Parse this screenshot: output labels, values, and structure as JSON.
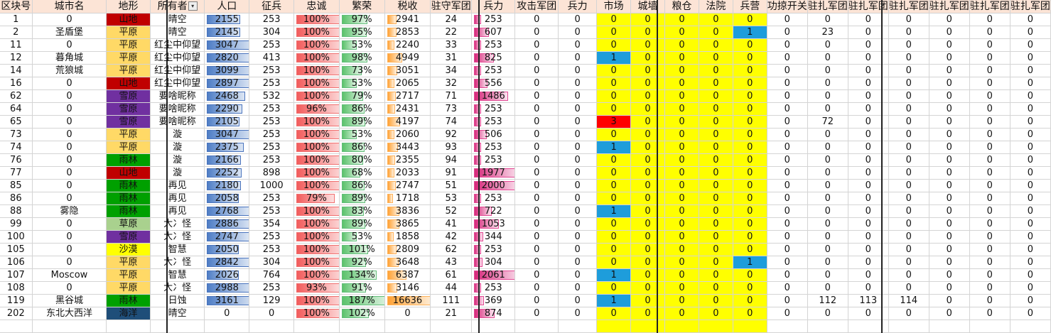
{
  "headers": [
    "区块号",
    "城市名",
    "地形",
    "所有者",
    "人口",
    "征兵",
    "忠诚",
    "繁荣",
    "税收",
    "驻守军团",
    "兵力",
    "攻击军团",
    "兵力",
    "市场",
    "城墙",
    "粮仓",
    "法院",
    "兵营",
    "功掠开关",
    "驻扎军团",
    "驻扎军团",
    "驻扎军团",
    "驻扎军团",
    "驻扎军团",
    "驻扎军团"
  ],
  "terrain_colors": {
    "山地": "#c00000",
    "平原": "#ffd966",
    "雪原": "#7030a0",
    "雨林": "#00a000",
    "草原": "#a9d18e",
    "沙漠": "#ffff00",
    "海洋": "#1f4e79"
  },
  "rows": [
    {
      "id": "1",
      "city": "0",
      "terrain": "山地",
      "owner": "晴空",
      "pop": "2155",
      "pop_v": 2155,
      "draft": "253",
      "loyalty": "100%",
      "loy_v": 100,
      "prosper": "97%",
      "pro_v": 97,
      "tax": "2941",
      "tax_v": 2941,
      "garrison": "24",
      "force": "253",
      "force_v": 253,
      "atk": "0",
      "atkforce": "0",
      "market": "0",
      "wall": "0",
      "granary": "0",
      "court": "0",
      "barracks": "0",
      "raid": "0",
      "s1": "0",
      "s2": "0",
      "s3": "0",
      "s4": "0",
      "s5": "0",
      "s6": "0"
    },
    {
      "id": "2",
      "city": "圣盾堡",
      "terrain": "平原",
      "owner": "晴空",
      "pop": "2145",
      "pop_v": 2145,
      "draft": "304",
      "loyalty": "100%",
      "loy_v": 100,
      "prosper": "95%",
      "pro_v": 95,
      "tax": "2853",
      "tax_v": 2853,
      "garrison": "22",
      "force": "607",
      "force_v": 607,
      "atk": "0",
      "atkforce": "0",
      "market": "0",
      "wall": "0",
      "granary": "0",
      "court": "0",
      "barracks": "1",
      "raid": "0",
      "s1": "23",
      "s2": "0",
      "s3": "0",
      "s4": "0",
      "s5": "0",
      "s6": "0"
    },
    {
      "id": "11",
      "city": "0",
      "terrain": "平原",
      "owner": "红尘中仰望",
      "pop": "3047",
      "pop_v": 3047,
      "draft": "253",
      "loyalty": "100%",
      "loy_v": 100,
      "prosper": "53%",
      "pro_v": 53,
      "tax": "2240",
      "tax_v": 2240,
      "garrison": "33",
      "force": "253",
      "force_v": 253,
      "atk": "0",
      "atkforce": "0",
      "market": "0",
      "wall": "0",
      "granary": "0",
      "court": "0",
      "barracks": "0",
      "raid": "0",
      "s1": "0",
      "s2": "0",
      "s3": "0",
      "s4": "0",
      "s5": "0",
      "s6": "0"
    },
    {
      "id": "12",
      "city": "暮角城",
      "terrain": "平原",
      "owner": "红尘中仰望",
      "pop": "2820",
      "pop_v": 2820,
      "draft": "413",
      "loyalty": "100%",
      "loy_v": 100,
      "prosper": "98%",
      "pro_v": 98,
      "tax": "4949",
      "tax_v": 4949,
      "garrison": "31",
      "force": "825",
      "force_v": 825,
      "atk": "0",
      "atkforce": "0",
      "market": "1",
      "wall": "0",
      "granary": "0",
      "court": "0",
      "barracks": "0",
      "raid": "0",
      "s1": "0",
      "s2": "0",
      "s3": "0",
      "s4": "0",
      "s5": "0",
      "s6": "0"
    },
    {
      "id": "14",
      "city": "荒狼城",
      "terrain": "平原",
      "owner": "红尘中仰望",
      "pop": "3099",
      "pop_v": 3099,
      "draft": "253",
      "loyalty": "100%",
      "loy_v": 100,
      "prosper": "73%",
      "pro_v": 73,
      "tax": "3051",
      "tax_v": 3051,
      "garrison": "34",
      "force": "253",
      "force_v": 253,
      "atk": "0",
      "atkforce": "0",
      "market": "0",
      "wall": "0",
      "granary": "0",
      "court": "0",
      "barracks": "0",
      "raid": "0",
      "s1": "0",
      "s2": "0",
      "s3": "0",
      "s4": "0",
      "s5": "0",
      "s6": "0"
    },
    {
      "id": "16",
      "city": "0",
      "terrain": "山地",
      "owner": "红尘中仰望",
      "pop": "2897",
      "pop_v": 2897,
      "draft": "253",
      "loyalty": "100%",
      "loy_v": 100,
      "prosper": "53%",
      "pro_v": 53,
      "tax": "2065",
      "tax_v": 2065,
      "garrison": "32",
      "force": "556",
      "force_v": 556,
      "atk": "0",
      "atkforce": "0",
      "market": "0",
      "wall": "0",
      "granary": "0",
      "court": "0",
      "barracks": "0",
      "raid": "0",
      "s1": "0",
      "s2": "0",
      "s3": "0",
      "s4": "0",
      "s5": "0",
      "s6": "0"
    },
    {
      "id": "62",
      "city": "0",
      "terrain": "雪原",
      "owner": "要啥昵称",
      "pop": "2468",
      "pop_v": 2468,
      "draft": "532",
      "loyalty": "100%",
      "loy_v": 100,
      "prosper": "79%",
      "pro_v": 79,
      "tax": "2717",
      "tax_v": 2717,
      "garrison": "71",
      "force": "1486",
      "force_v": 1486,
      "atk": "0",
      "atkforce": "0",
      "market": "0",
      "wall": "0",
      "granary": "0",
      "court": "0",
      "barracks": "0",
      "raid": "0",
      "s1": "0",
      "s2": "0",
      "s3": "0",
      "s4": "0",
      "s5": "0",
      "s6": "0"
    },
    {
      "id": "64",
      "city": "0",
      "terrain": "雪原",
      "owner": "要啥昵称",
      "pop": "2290",
      "pop_v": 2290,
      "draft": "253",
      "loyalty": "96%",
      "loy_v": 96,
      "prosper": "86%",
      "pro_v": 86,
      "tax": "2431",
      "tax_v": 2431,
      "garrison": "73",
      "force": "253",
      "force_v": 253,
      "atk": "0",
      "atkforce": "0",
      "market": "0",
      "wall": "0",
      "granary": "0",
      "court": "0",
      "barracks": "0",
      "raid": "0",
      "s1": "0",
      "s2": "0",
      "s3": "0",
      "s4": "0",
      "s5": "0",
      "s6": "0"
    },
    {
      "id": "65",
      "city": "0",
      "terrain": "雪原",
      "owner": "要啥昵称",
      "pop": "2105",
      "pop_v": 2105,
      "draft": "253",
      "loyalty": "100%",
      "loy_v": 100,
      "prosper": "89%",
      "pro_v": 89,
      "tax": "4197",
      "tax_v": 4197,
      "garrison": "74",
      "force": "253",
      "force_v": 253,
      "atk": "0",
      "atkforce": "0",
      "market": "3",
      "wall": "0",
      "granary": "0",
      "court": "0",
      "barracks": "0",
      "raid": "0",
      "s1": "72",
      "s2": "0",
      "s3": "0",
      "s4": "0",
      "s5": "0",
      "s6": "0"
    },
    {
      "id": "73",
      "city": "0",
      "terrain": "平原",
      "owner": "漩",
      "pop": "3047",
      "pop_v": 3047,
      "draft": "253",
      "loyalty": "100%",
      "loy_v": 100,
      "prosper": "53%",
      "pro_v": 53,
      "tax": "2060",
      "tax_v": 2060,
      "garrison": "92",
      "force": "506",
      "force_v": 506,
      "atk": "0",
      "atkforce": "0",
      "market": "0",
      "wall": "0",
      "granary": "0",
      "court": "0",
      "barracks": "0",
      "raid": "0",
      "s1": "0",
      "s2": "0",
      "s3": "0",
      "s4": "0",
      "s5": "0",
      "s6": "0"
    },
    {
      "id": "74",
      "city": "0",
      "terrain": "平原",
      "owner": "漩",
      "pop": "2375",
      "pop_v": 2375,
      "draft": "253",
      "loyalty": "100%",
      "loy_v": 100,
      "prosper": "86%",
      "pro_v": 86,
      "tax": "3443",
      "tax_v": 3443,
      "garrison": "93",
      "force": "253",
      "force_v": 253,
      "atk": "0",
      "atkforce": "0",
      "market": "1",
      "wall": "0",
      "granary": "0",
      "court": "0",
      "barracks": "0",
      "raid": "0",
      "s1": "0",
      "s2": "0",
      "s3": "0",
      "s4": "0",
      "s5": "0",
      "s6": "0"
    },
    {
      "id": "76",
      "city": "0",
      "terrain": "雨林",
      "owner": "漩",
      "pop": "2166",
      "pop_v": 2166,
      "draft": "253",
      "loyalty": "100%",
      "loy_v": 100,
      "prosper": "80%",
      "pro_v": 80,
      "tax": "2355",
      "tax_v": 2355,
      "garrison": "94",
      "force": "253",
      "force_v": 253,
      "atk": "0",
      "atkforce": "0",
      "market": "0",
      "wall": "0",
      "granary": "0",
      "court": "0",
      "barracks": "0",
      "raid": "0",
      "s1": "0",
      "s2": "0",
      "s3": "0",
      "s4": "0",
      "s5": "0",
      "s6": "0"
    },
    {
      "id": "77",
      "city": "0",
      "terrain": "山地",
      "owner": "漩",
      "pop": "2252",
      "pop_v": 2252,
      "draft": "898",
      "loyalty": "100%",
      "loy_v": 100,
      "prosper": "68%",
      "pro_v": 68,
      "tax": "2033",
      "tax_v": 2033,
      "garrison": "91",
      "force": "1977",
      "force_v": 1977,
      "atk": "0",
      "atkforce": "0",
      "market": "0",
      "wall": "0",
      "granary": "0",
      "court": "0",
      "barracks": "0",
      "raid": "0",
      "s1": "0",
      "s2": "0",
      "s3": "0",
      "s4": "0",
      "s5": "0",
      "s6": "0"
    },
    {
      "id": "85",
      "city": "0",
      "terrain": "雨林",
      "owner": "再见",
      "pop": "2180",
      "pop_v": 2180,
      "draft": "1000",
      "loyalty": "100%",
      "loy_v": 100,
      "prosper": "86%",
      "pro_v": 86,
      "tax": "2747",
      "tax_v": 2747,
      "garrison": "51",
      "force": "2000",
      "force_v": 2000,
      "atk": "0",
      "atkforce": "0",
      "market": "0",
      "wall": "0",
      "granary": "0",
      "court": "0",
      "barracks": "0",
      "raid": "0",
      "s1": "0",
      "s2": "0",
      "s3": "0",
      "s4": "0",
      "s5": "0",
      "s6": "0"
    },
    {
      "id": "86",
      "city": "0",
      "terrain": "雨林",
      "owner": "再见",
      "pop": "2058",
      "pop_v": 2058,
      "draft": "253",
      "loyalty": "79%",
      "loy_v": 79,
      "prosper": "89%",
      "pro_v": 89,
      "tax": "1718",
      "tax_v": 1718,
      "garrison": "53",
      "force": "253",
      "force_v": 253,
      "atk": "0",
      "atkforce": "0",
      "market": "0",
      "wall": "0",
      "granary": "0",
      "court": "0",
      "barracks": "0",
      "raid": "0",
      "s1": "0",
      "s2": "0",
      "s3": "0",
      "s4": "0",
      "s5": "0",
      "s6": "0"
    },
    {
      "id": "88",
      "city": "雾隐",
      "terrain": "雨林",
      "owner": "再见",
      "pop": "2768",
      "pop_v": 2768,
      "draft": "253",
      "loyalty": "100%",
      "loy_v": 100,
      "prosper": "83%",
      "pro_v": 83,
      "tax": "3836",
      "tax_v": 3836,
      "garrison": "52",
      "force": "722",
      "force_v": 722,
      "atk": "0",
      "atkforce": "0",
      "market": "1",
      "wall": "0",
      "granary": "0",
      "court": "0",
      "barracks": "0",
      "raid": "0",
      "s1": "0",
      "s2": "0",
      "s3": "0",
      "s4": "0",
      "s5": "0",
      "s6": "0"
    },
    {
      "id": "99",
      "city": "0",
      "terrain": "草原",
      "owner": "大冫怪",
      "pop": "2886",
      "pop_v": 2886,
      "draft": "354",
      "loyalty": "100%",
      "loy_v": 100,
      "prosper": "89%",
      "pro_v": 89,
      "tax": "3865",
      "tax_v": 3865,
      "garrison": "41",
      "force": "1053",
      "force_v": 1053,
      "atk": "0",
      "atkforce": "0",
      "market": "0",
      "wall": "0",
      "granary": "0",
      "court": "0",
      "barracks": "0",
      "raid": "0",
      "s1": "0",
      "s2": "0",
      "s3": "0",
      "s4": "0",
      "s5": "0",
      "s6": "0"
    },
    {
      "id": "100",
      "city": "0",
      "terrain": "雪原",
      "owner": "大冫怪",
      "pop": "2747",
      "pop_v": 2747,
      "draft": "253",
      "loyalty": "100%",
      "loy_v": 100,
      "prosper": "53%",
      "pro_v": 53,
      "tax": "1858",
      "tax_v": 1858,
      "garrison": "42",
      "force": "344",
      "force_v": 344,
      "atk": "0",
      "atkforce": "0",
      "market": "0",
      "wall": "0",
      "granary": "0",
      "court": "0",
      "barracks": "0",
      "raid": "0",
      "s1": "0",
      "s2": "0",
      "s3": "0",
      "s4": "0",
      "s5": "0",
      "s6": "0"
    },
    {
      "id": "105",
      "city": "0",
      "terrain": "沙漠",
      "owner": "智慧",
      "pop": "2050",
      "pop_v": 2050,
      "draft": "253",
      "loyalty": "100%",
      "loy_v": 100,
      "prosper": "101%",
      "pro_v": 101,
      "tax": "2809",
      "tax_v": 2809,
      "garrison": "62",
      "force": "253",
      "force_v": 253,
      "atk": "0",
      "atkforce": "0",
      "market": "0",
      "wall": "0",
      "granary": "0",
      "court": "0",
      "barracks": "0",
      "raid": "0",
      "s1": "0",
      "s2": "0",
      "s3": "0",
      "s4": "0",
      "s5": "0",
      "s6": "0"
    },
    {
      "id": "106",
      "city": "0",
      "terrain": "平原",
      "owner": "大冫怪",
      "pop": "2842",
      "pop_v": 2842,
      "draft": "304",
      "loyalty": "100%",
      "loy_v": 100,
      "prosper": "92%",
      "pro_v": 92,
      "tax": "3648",
      "tax_v": 3648,
      "garrison": "43",
      "force": "304",
      "force_v": 304,
      "atk": "0",
      "atkforce": "0",
      "market": "0",
      "wall": "0",
      "granary": "0",
      "court": "0",
      "barracks": "1",
      "raid": "0",
      "s1": "0",
      "s2": "0",
      "s3": "0",
      "s4": "0",
      "s5": "0",
      "s6": "0"
    },
    {
      "id": "107",
      "city": "Moscow",
      "terrain": "平原",
      "owner": "智慧",
      "pop": "2026",
      "pop_v": 2026,
      "draft": "764",
      "loyalty": "100%",
      "loy_v": 100,
      "prosper": "134%",
      "pro_v": 134,
      "tax": "6387",
      "tax_v": 6387,
      "garrison": "61",
      "force": "2061",
      "force_v": 2061,
      "atk": "0",
      "atkforce": "0",
      "market": "1",
      "wall": "0",
      "granary": "0",
      "court": "0",
      "barracks": "0",
      "raid": "0",
      "s1": "0",
      "s2": "0",
      "s3": "0",
      "s4": "0",
      "s5": "0",
      "s6": "0"
    },
    {
      "id": "108",
      "city": "0",
      "terrain": "平原",
      "owner": "大冫怪",
      "pop": "2988",
      "pop_v": 2988,
      "draft": "253",
      "loyalty": "93%",
      "loy_v": 93,
      "prosper": "91%",
      "pro_v": 91,
      "tax": "3146",
      "tax_v": 3146,
      "garrison": "44",
      "force": "253",
      "force_v": 253,
      "atk": "0",
      "atkforce": "0",
      "market": "0",
      "wall": "0",
      "granary": "0",
      "court": "0",
      "barracks": "0",
      "raid": "0",
      "s1": "0",
      "s2": "0",
      "s3": "0",
      "s4": "0",
      "s5": "0",
      "s6": "0"
    },
    {
      "id": "119",
      "city": "黑谷城",
      "terrain": "雨林",
      "owner": "日蚀",
      "pop": "3161",
      "pop_v": 3161,
      "draft": "129",
      "loyalty": "100%",
      "loy_v": 100,
      "prosper": "187%",
      "pro_v": 187,
      "tax": "16636",
      "tax_v": 16636,
      "garrison": "111",
      "force": "369",
      "force_v": 369,
      "atk": "0",
      "atkforce": "0",
      "market": "1",
      "wall": "0",
      "granary": "0",
      "court": "0",
      "barracks": "0",
      "raid": "0",
      "s1": "112",
      "s2": "113",
      "s3": "114",
      "s4": "0",
      "s5": "0",
      "s6": "0"
    },
    {
      "id": "202",
      "city": "东北大西洋",
      "terrain": "海洋",
      "owner": "晴空",
      "pop": "0",
      "pop_v": 0,
      "draft": "0",
      "loyalty": "100%",
      "loy_v": 100,
      "prosper": "102%",
      "pro_v": 102,
      "tax": "0",
      "tax_v": 0,
      "garrison": "21",
      "force": "874",
      "force_v": 874,
      "atk": "0",
      "atkforce": "0",
      "market": "0",
      "wall": "0",
      "granary": "0",
      "court": "0",
      "barracks": "0",
      "raid": "0",
      "s1": "0",
      "s2": "0",
      "s3": "0",
      "s4": "0",
      "s5": "0",
      "s6": "0"
    }
  ],
  "filter_icon": "filter-dropdown-icon"
}
